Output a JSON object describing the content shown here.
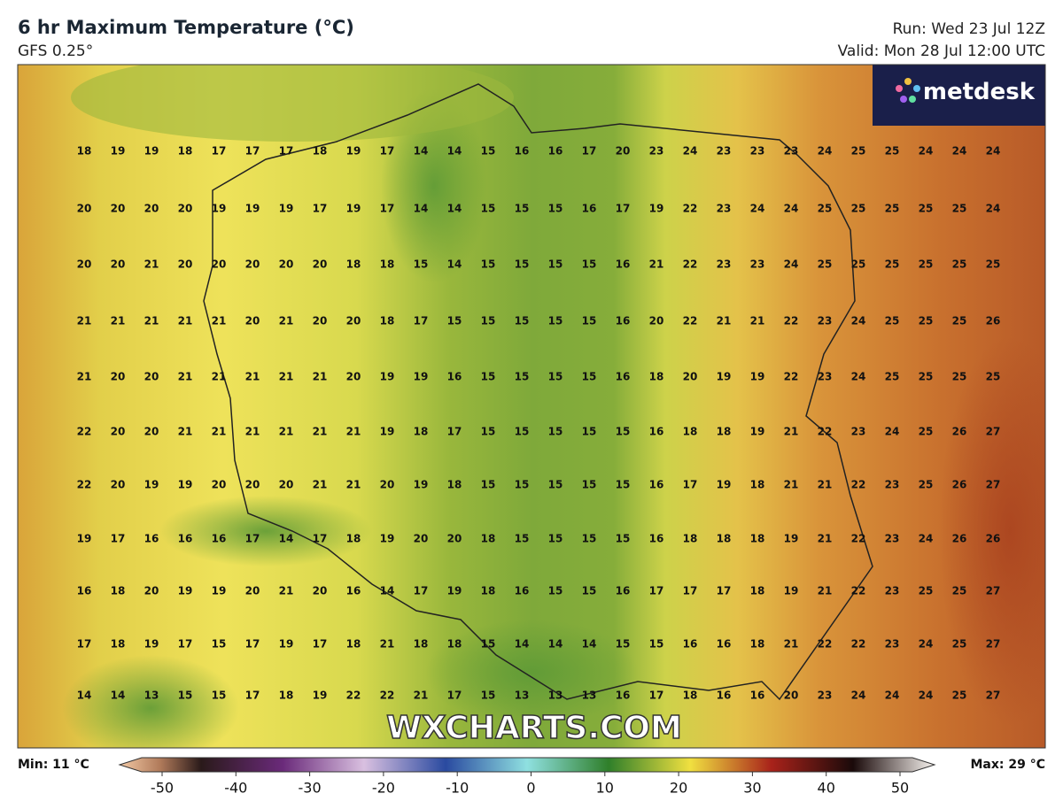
{
  "header": {
    "title": "6 hr Maximum Temperature (°C)",
    "subtitle": "GFS 0.25°",
    "run": "Run: Wed 23 Jul 12Z",
    "valid": "Valid: Mon 28 Jul 12:00 UTC"
  },
  "logo": "metdesk",
  "watermark": "WXCHARTS.COM",
  "grid": {
    "rows": [
      [
        18,
        19,
        19,
        18,
        17,
        17,
        17,
        18,
        19,
        17,
        14,
        14,
        15,
        16,
        16,
        17,
        20,
        23,
        24,
        23,
        23,
        23,
        24,
        25,
        25,
        24,
        24,
        24
      ],
      [
        20,
        20,
        20,
        20,
        19,
        19,
        19,
        17,
        19,
        17,
        14,
        14,
        15,
        15,
        15,
        16,
        17,
        19,
        22,
        23,
        24,
        24,
        25,
        25,
        25,
        25,
        25,
        24
      ],
      [
        20,
        20,
        21,
        20,
        20,
        20,
        20,
        20,
        18,
        18,
        15,
        14,
        15,
        15,
        15,
        15,
        16,
        21,
        22,
        23,
        23,
        24,
        25,
        25,
        25,
        25,
        25,
        25
      ],
      [
        21,
        21,
        21,
        21,
        21,
        20,
        21,
        20,
        20,
        18,
        17,
        15,
        15,
        15,
        15,
        15,
        16,
        20,
        22,
        21,
        21,
        22,
        23,
        24,
        25,
        25,
        25,
        26
      ],
      [
        21,
        20,
        20,
        21,
        21,
        21,
        21,
        21,
        20,
        19,
        19,
        16,
        15,
        15,
        15,
        15,
        16,
        18,
        20,
        19,
        19,
        22,
        23,
        24,
        25,
        25,
        25,
        25
      ],
      [
        22,
        20,
        20,
        21,
        21,
        21,
        21,
        21,
        21,
        19,
        18,
        17,
        15,
        15,
        15,
        15,
        15,
        16,
        18,
        18,
        19,
        21,
        22,
        23,
        24,
        25,
        26,
        27
      ],
      [
        22,
        20,
        19,
        19,
        20,
        20,
        20,
        21,
        21,
        20,
        19,
        18,
        15,
        15,
        15,
        15,
        15,
        16,
        17,
        19,
        18,
        21,
        21,
        22,
        23,
        25,
        26,
        27
      ],
      [
        19,
        17,
        16,
        16,
        16,
        17,
        14,
        17,
        18,
        19,
        20,
        20,
        18,
        15,
        15,
        15,
        15,
        16,
        18,
        18,
        18,
        19,
        21,
        22,
        23,
        24,
        26,
        26
      ],
      [
        16,
        18,
        20,
        19,
        19,
        20,
        21,
        20,
        16,
        14,
        17,
        19,
        18,
        16,
        15,
        15,
        16,
        17,
        17,
        17,
        18,
        19,
        21,
        22,
        23,
        25,
        25,
        27
      ],
      [
        17,
        18,
        19,
        17,
        15,
        17,
        19,
        17,
        18,
        21,
        18,
        18,
        15,
        14,
        14,
        14,
        15,
        15,
        16,
        16,
        18,
        21,
        22,
        22,
        23,
        24,
        25,
        27
      ],
      [
        14,
        14,
        13,
        15,
        15,
        17,
        18,
        19,
        22,
        22,
        21,
        17,
        15,
        13,
        13,
        13,
        16,
        17,
        18,
        16,
        16,
        20,
        23,
        24,
        24,
        24,
        25,
        27
      ]
    ]
  },
  "colorbar": {
    "min_label": "Min: 11 °C",
    "max_label": "Max: 29 °C",
    "xlim": [
      -50,
      50
    ],
    "xticks": [
      -50,
      -40,
      -30,
      -20,
      -10,
      0,
      10,
      20,
      30,
      40,
      50
    ]
  }
}
